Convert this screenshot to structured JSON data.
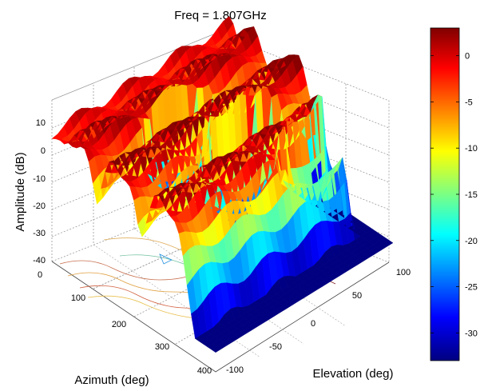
{
  "chart_data": {
    "type": "surface3d",
    "title": "Freq = 1.807GHz",
    "xlabel": "Azimuth (deg)",
    "ylabel": "Elevation (deg)",
    "zlabel": "Amplitude (dB)",
    "x_ticks": [
      0,
      100,
      200,
      300,
      400
    ],
    "y_ticks": [
      -100,
      -50,
      0,
      50,
      100
    ],
    "z_ticks": [
      10,
      0,
      -10,
      -20,
      -30,
      -40
    ],
    "xlim": [
      0,
      400
    ],
    "ylim": [
      -100,
      100
    ],
    "zlim": [
      -40,
      10
    ],
    "grid": true,
    "contour_projection": true,
    "colormap": "jet",
    "colorbar": {
      "ticks": [
        0,
        -5,
        -10,
        -15,
        -20,
        -25,
        -30
      ],
      "range": [
        -33,
        3
      ]
    },
    "ridges": [
      {
        "azimuth": 0,
        "elevation_start": 100,
        "elevation_end": -100,
        "amplitude_peak": 0,
        "amplitude_edge": -10
      },
      {
        "azimuth": 60,
        "elevation_start": 100,
        "elevation_end": -100,
        "amplitude_peak": 2,
        "amplitude_edge": -10
      },
      {
        "azimuth": 160,
        "elevation_start": 100,
        "elevation_end": -100,
        "amplitude_peak": 3,
        "amplitude_edge": -8
      },
      {
        "azimuth": 270,
        "elevation_start": 100,
        "elevation_end": -80,
        "amplitude_peak": 2,
        "amplitude_edge": -10
      }
    ],
    "valleys": [
      {
        "azimuth": 100,
        "elevation": 0,
        "amplitude": -30
      },
      {
        "azimuth": 200,
        "elevation": -20,
        "amplitude": -33
      },
      {
        "azimuth": 300,
        "elevation": -60,
        "amplitude": -25
      }
    ]
  }
}
